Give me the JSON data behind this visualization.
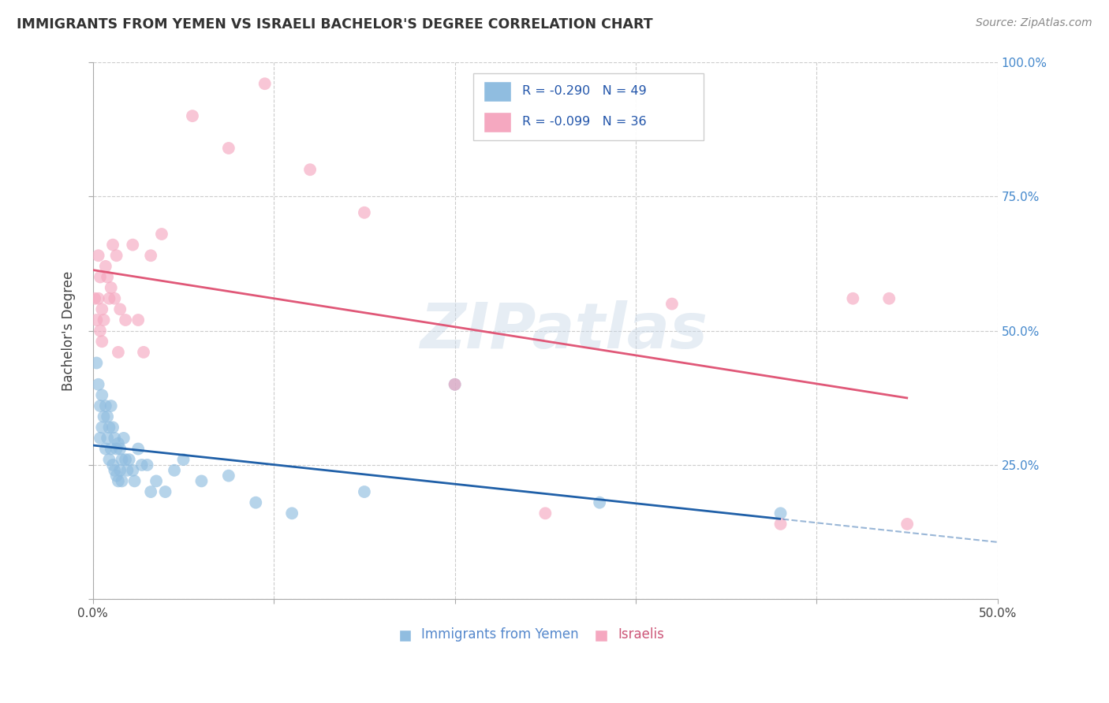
{
  "title": "IMMIGRANTS FROM YEMEN VS ISRAELI BACHELOR'S DEGREE CORRELATION CHART",
  "source": "Source: ZipAtlas.com",
  "ylabel": "Bachelor's Degree",
  "xlim": [
    0.0,
    0.5
  ],
  "ylim": [
    0.0,
    1.0
  ],
  "right_yticks": [
    1.0,
    0.75,
    0.5,
    0.25,
    0.0
  ],
  "xticks": [
    0.0,
    0.1,
    0.2,
    0.3,
    0.4,
    0.5
  ],
  "grid_color": "#cccccc",
  "background_color": "#ffffff",
  "blue_color": "#90bde0",
  "pink_color": "#f5a8c0",
  "blue_line_color": "#2060a8",
  "pink_line_color": "#e05878",
  "legend_R_blue": "-0.290",
  "legend_N_blue": "49",
  "legend_R_pink": "-0.099",
  "legend_N_pink": "36",
  "legend_label_blue": "Immigrants from Yemen",
  "legend_label_pink": "Israelis",
  "watermark": "ZIPatlas",
  "blue_scatter_x": [
    0.002,
    0.003,
    0.004,
    0.004,
    0.005,
    0.005,
    0.006,
    0.007,
    0.007,
    0.008,
    0.008,
    0.009,
    0.009,
    0.01,
    0.01,
    0.011,
    0.011,
    0.012,
    0.012,
    0.013,
    0.013,
    0.014,
    0.014,
    0.015,
    0.015,
    0.016,
    0.016,
    0.017,
    0.018,
    0.019,
    0.02,
    0.022,
    0.023,
    0.025,
    0.027,
    0.03,
    0.032,
    0.035,
    0.04,
    0.045,
    0.05,
    0.06,
    0.075,
    0.09,
    0.11,
    0.15,
    0.2,
    0.28,
    0.38
  ],
  "blue_scatter_y": [
    0.44,
    0.4,
    0.36,
    0.3,
    0.38,
    0.32,
    0.34,
    0.36,
    0.28,
    0.34,
    0.3,
    0.32,
    0.26,
    0.36,
    0.28,
    0.32,
    0.25,
    0.3,
    0.24,
    0.28,
    0.23,
    0.29,
    0.22,
    0.28,
    0.24,
    0.26,
    0.22,
    0.3,
    0.26,
    0.24,
    0.26,
    0.24,
    0.22,
    0.28,
    0.25,
    0.25,
    0.2,
    0.22,
    0.2,
    0.24,
    0.26,
    0.22,
    0.23,
    0.18,
    0.16,
    0.2,
    0.4,
    0.18,
    0.16
  ],
  "pink_scatter_x": [
    0.001,
    0.002,
    0.003,
    0.003,
    0.004,
    0.004,
    0.005,
    0.005,
    0.006,
    0.007,
    0.008,
    0.009,
    0.01,
    0.011,
    0.012,
    0.013,
    0.014,
    0.015,
    0.018,
    0.022,
    0.025,
    0.028,
    0.032,
    0.038,
    0.055,
    0.075,
    0.095,
    0.12,
    0.15,
    0.2,
    0.25,
    0.32,
    0.38,
    0.42,
    0.44,
    0.45
  ],
  "pink_scatter_y": [
    0.56,
    0.52,
    0.56,
    0.64,
    0.6,
    0.5,
    0.54,
    0.48,
    0.52,
    0.62,
    0.6,
    0.56,
    0.58,
    0.66,
    0.56,
    0.64,
    0.46,
    0.54,
    0.52,
    0.66,
    0.52,
    0.46,
    0.64,
    0.68,
    0.9,
    0.84,
    0.96,
    0.8,
    0.72,
    0.4,
    0.16,
    0.55,
    0.14,
    0.56,
    0.56,
    0.14
  ]
}
